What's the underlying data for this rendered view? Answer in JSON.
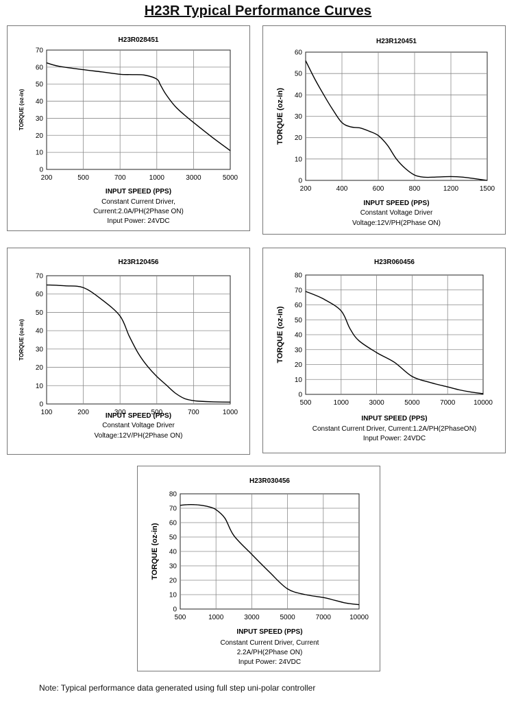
{
  "page": {
    "title": "H23R Typical Performance Curves",
    "note": "Note:  Typical performance data generated using full step uni-polar controller"
  },
  "chart_data": [
    {
      "type": "line",
      "title": "H23R028451",
      "xlabel": "INPUT SPEED (PPS)",
      "ylabel": "TORQUE (oz-in)",
      "x_ticks": [
        "200",
        "500",
        "700",
        "1000",
        "3000",
        "5000"
      ],
      "y_ticks": [
        "0",
        "10",
        "20",
        "30",
        "40",
        "50",
        "60",
        "70"
      ],
      "ylim": [
        0,
        70
      ],
      "grid": true,
      "caption": [
        "Constant Current Driver,",
        "Current:2.0A/PH(2Phase ON)",
        "Input Power: 24VDC"
      ],
      "series": [
        {
          "x": [
            "200",
            "300",
            "500",
            "600",
            "700",
            "800",
            "900",
            "1000",
            "1200",
            "1500",
            "2000",
            "2500",
            "3000",
            "4000",
            "5000"
          ],
          "y": [
            62.5,
            60.5,
            58.5,
            57.2,
            55.8,
            55.6,
            55.3,
            53,
            49.5,
            44,
            37,
            32,
            27.5,
            19,
            11
          ]
        }
      ]
    },
    {
      "type": "line",
      "title": "H23R120451",
      "xlabel": "INPUT SPEED (PPS)",
      "ylabel": "TORQUE (oz-in)",
      "x_ticks": [
        "200",
        "400",
        "600",
        "800",
        "1200",
        "1500"
      ],
      "y_ticks": [
        "0",
        "10",
        "20",
        "30",
        "40",
        "50",
        "60"
      ],
      "ylim": [
        0,
        60
      ],
      "grid": true,
      "caption": [
        "Constant Voltage Driver",
        "Voltage:12V/PH(2Phase ON)"
      ],
      "series": [
        {
          "x": [
            "200",
            "250",
            "300",
            "350",
            "400",
            "450",
            "500",
            "550",
            "600",
            "650",
            "700",
            "750",
            "800",
            "900",
            "1000",
            "1200",
            "1300",
            "1500"
          ],
          "y": [
            56,
            47.5,
            40,
            33,
            27,
            25,
            24.5,
            23,
            21,
            16.5,
            10,
            5.5,
            2.5,
            1.5,
            1.5,
            1.8,
            1.5,
            0
          ]
        }
      ]
    },
    {
      "type": "line",
      "title": "H23R120456",
      "xlabel": "INPUT SPEED (PPS)",
      "ylabel": "TORQUE (oz-in)",
      "x_ticks": [
        "100",
        "200",
        "300",
        "500",
        "700",
        "1000"
      ],
      "y_ticks": [
        "0",
        "10",
        "20",
        "30",
        "40",
        "50",
        "60",
        "70"
      ],
      "ylim": [
        0,
        70
      ],
      "grid": true,
      "caption": [
        "Constant Voltage Driver",
        "Voltage:12V/PH(2Phase ON)"
      ],
      "series": [
        {
          "x": [
            "100",
            "150",
            "200",
            "250",
            "300",
            "350",
            "400",
            "450",
            "500",
            "550",
            "600",
            "650",
            "700",
            "750",
            "800",
            "900",
            "1000"
          ],
          "y": [
            65,
            64.5,
            63.5,
            57,
            48,
            37,
            27.5,
            20.5,
            15,
            10.5,
            6,
            3,
            1.8,
            1.5,
            1.3,
            1.1,
            1
          ]
        }
      ]
    },
    {
      "type": "line",
      "title": "H23R060456",
      "xlabel": "INPUT SPEED (PPS)",
      "ylabel": "TORQUE (oz-in)",
      "x_ticks": [
        "500",
        "1000",
        "3000",
        "5000",
        "7000",
        "10000"
      ],
      "y_ticks": [
        "0",
        "10",
        "20",
        "30",
        "40",
        "50",
        "60",
        "70",
        "80"
      ],
      "ylim": [
        0,
        80
      ],
      "grid": true,
      "caption": [
        "Constant Current Driver, Current:1.2A/PH(2PhaseON)",
        "Input Power: 24VDC"
      ],
      "series": [
        {
          "x": [
            "500",
            "750",
            "1000",
            "1500",
            "2000",
            "3000",
            "4000",
            "5000",
            "6000",
            "7000",
            "8000",
            "9000",
            "10000"
          ],
          "y": [
            69,
            64,
            56,
            44,
            36,
            28,
            21.5,
            12,
            8,
            5,
            3,
            1.5,
            0.5
          ]
        }
      ]
    },
    {
      "type": "line",
      "title": "H23R030456",
      "xlabel": "INPUT SPEED (PPS)",
      "ylabel": "TORQUE (oz-in)",
      "x_ticks": [
        "500",
        "1000",
        "3000",
        "5000",
        "7000",
        "10000"
      ],
      "y_ticks": [
        "0",
        "10",
        "20",
        "30",
        "40",
        "50",
        "60",
        "70",
        "80"
      ],
      "ylim": [
        0,
        80
      ],
      "grid": true,
      "caption": [
        "Constant Current Driver, Current",
        "2.2A/PH(2Phase ON)",
        "Input Power: 24VDC"
      ],
      "series": [
        {
          "x": [
            "500",
            "600",
            "700",
            "800",
            "900",
            "1000",
            "1500",
            "2000",
            "3000",
            "4000",
            "5000",
            "6000",
            "7000",
            "8000",
            "9000",
            "10000"
          ],
          "y": [
            72,
            72.5,
            72.5,
            72,
            71,
            69,
            63,
            51,
            38,
            25.5,
            14,
            10,
            8,
            6,
            4,
            3
          ]
        }
      ]
    }
  ]
}
